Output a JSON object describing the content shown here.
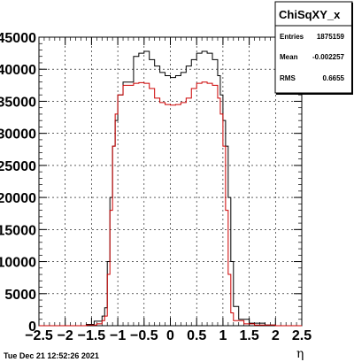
{
  "timestamp": "Tue Dec 21 12:52:26 2021",
  "stats_box": {
    "title": "ChiSqXY_x",
    "entries_label": "Entries",
    "entries_value": "1875159",
    "mean_label": "Mean",
    "mean_value": "-0.002257",
    "rms_label": "RMS",
    "rms_value": "0.6655"
  },
  "chart_data": {
    "type": "line",
    "title": "",
    "xlabel": "η",
    "ylabel": "",
    "xlim": [
      -2.5,
      2.5
    ],
    "ylim": [
      0,
      45000
    ],
    "grid": true,
    "x_ticks": [
      -2.5,
      -2,
      -1.5,
      -1,
      -0.5,
      0,
      0.5,
      1,
      1.5,
      2,
      2.5
    ],
    "x_tick_labels": [
      "−2.5",
      "−2",
      "−1.5",
      "−1",
      "−0.5",
      "0",
      "0.5",
      "1",
      "1.5",
      "2",
      "2.5"
    ],
    "y_ticks": [
      0,
      5000,
      10000,
      15000,
      20000,
      25000,
      30000,
      35000,
      40000,
      45000
    ],
    "y_tick_labels": [
      "0",
      "5000",
      "10000",
      "15000",
      "20000",
      "25000",
      "30000",
      "35000",
      "40000",
      "45000"
    ],
    "series": [
      {
        "color": "#000000",
        "step": true,
        "points": [
          [
            -2.5,
            0
          ],
          [
            -2.0,
            0
          ],
          [
            -1.6,
            200
          ],
          [
            -1.45,
            700
          ],
          [
            -1.3,
            1500
          ],
          [
            -1.25,
            2800
          ],
          [
            -1.2,
            10000
          ],
          [
            -1.15,
            20000
          ],
          [
            -1.1,
            28000
          ],
          [
            -1.05,
            32000
          ],
          [
            -1.0,
            36000
          ],
          [
            -0.9,
            38000
          ],
          [
            -0.7,
            42000
          ],
          [
            -0.6,
            42500
          ],
          [
            -0.5,
            42800
          ],
          [
            -0.4,
            41500
          ],
          [
            -0.3,
            40500
          ],
          [
            -0.2,
            39500
          ],
          [
            -0.1,
            39000
          ],
          [
            0.0,
            38700
          ],
          [
            0.1,
            39000
          ],
          [
            0.2,
            39500
          ],
          [
            0.3,
            40500
          ],
          [
            0.4,
            41500
          ],
          [
            0.5,
            42500
          ],
          [
            0.6,
            42800
          ],
          [
            0.7,
            42500
          ],
          [
            0.8,
            41500
          ],
          [
            0.9,
            39000
          ],
          [
            0.95,
            36000
          ],
          [
            1.0,
            32000
          ],
          [
            1.05,
            28000
          ],
          [
            1.1,
            20000
          ],
          [
            1.15,
            10000
          ],
          [
            1.2,
            3000
          ],
          [
            1.3,
            1000
          ],
          [
            1.5,
            400
          ],
          [
            1.8,
            100
          ],
          [
            2.0,
            0
          ],
          [
            2.5,
            0
          ]
        ]
      },
      {
        "color": "#cc0000",
        "step": true,
        "points": [
          [
            -2.5,
            0
          ],
          [
            -2.0,
            0
          ],
          [
            -1.6,
            100
          ],
          [
            -1.4,
            300
          ],
          [
            -1.3,
            800
          ],
          [
            -1.25,
            1500
          ],
          [
            -1.2,
            8000
          ],
          [
            -1.15,
            18000
          ],
          [
            -1.1,
            28000
          ],
          [
            -1.05,
            33000
          ],
          [
            -1.0,
            36000
          ],
          [
            -0.9,
            37500
          ],
          [
            -0.7,
            37800
          ],
          [
            -0.6,
            37900
          ],
          [
            -0.5,
            37800
          ],
          [
            -0.4,
            37000
          ],
          [
            -0.3,
            35500
          ],
          [
            -0.2,
            34800
          ],
          [
            -0.1,
            34500
          ],
          [
            0.0,
            34400
          ],
          [
            0.1,
            34500
          ],
          [
            0.2,
            34800
          ],
          [
            0.3,
            35500
          ],
          [
            0.4,
            37000
          ],
          [
            0.5,
            37800
          ],
          [
            0.6,
            38000
          ],
          [
            0.7,
            37800
          ],
          [
            0.8,
            37500
          ],
          [
            0.9,
            35500
          ],
          [
            0.95,
            33000
          ],
          [
            1.0,
            28000
          ],
          [
            1.05,
            18000
          ],
          [
            1.1,
            8000
          ],
          [
            1.15,
            2000
          ],
          [
            1.2,
            800
          ],
          [
            1.4,
            300
          ],
          [
            1.6,
            100
          ],
          [
            2.0,
            0
          ],
          [
            2.5,
            0
          ]
        ]
      }
    ]
  }
}
